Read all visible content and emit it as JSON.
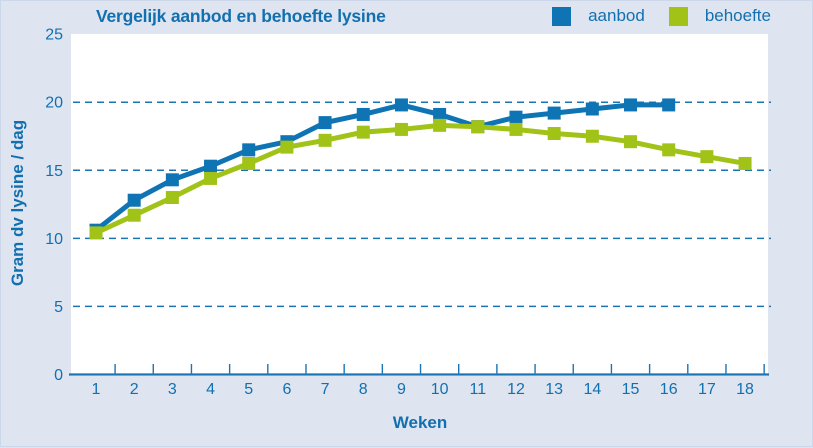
{
  "chart": {
    "title": "Vergelijk aanbod en behoefte lysine"
  },
  "chart_data": {
    "type": "line",
    "title": "Vergelijk aanbod en behoefte lysine",
    "xlabel": "Weken",
    "ylabel": "Gram dv lysine / dag",
    "x_ticks": [
      1,
      2,
      3,
      4,
      5,
      6,
      7,
      8,
      9,
      10,
      11,
      12,
      13,
      14,
      15,
      16,
      17,
      18
    ],
    "y_ticks": [
      0,
      5,
      10,
      15,
      20,
      25
    ],
    "ylim": [
      0,
      25
    ],
    "xlim": [
      0.35,
      18.6
    ],
    "grid": "horizontal dashed lines at 5,10,15,20; solid baseline at 0",
    "legend_position": "top-right",
    "marker": "square",
    "series": [
      {
        "name": "aanbod",
        "color": "#0e74b4",
        "x": [
          1,
          2,
          3,
          4,
          5,
          6,
          7,
          8,
          9,
          10,
          11,
          12,
          13,
          14,
          15,
          16
        ],
        "values": [
          10.6,
          12.8,
          14.3,
          15.3,
          16.5,
          17.1,
          18.5,
          19.1,
          19.8,
          19.1,
          18.2,
          18.9,
          19.2,
          19.5,
          19.8,
          19.8
        ]
      },
      {
        "name": "behoefte",
        "color": "#a1c318",
        "x": [
          1,
          2,
          3,
          4,
          5,
          6,
          7,
          8,
          9,
          10,
          11,
          12,
          13,
          14,
          15,
          16,
          17,
          18
        ],
        "values": [
          10.4,
          11.7,
          13.0,
          14.4,
          15.5,
          16.7,
          17.2,
          17.8,
          18.0,
          18.3,
          18.2,
          18.0,
          17.7,
          17.5,
          17.1,
          16.5,
          16.0,
          15.5
        ]
      }
    ],
    "colors": {
      "page_bg": "#dfe5f0",
      "plot_bg": "#ffffff",
      "axis": "#1b74b4",
      "text": "#1270b0"
    }
  }
}
